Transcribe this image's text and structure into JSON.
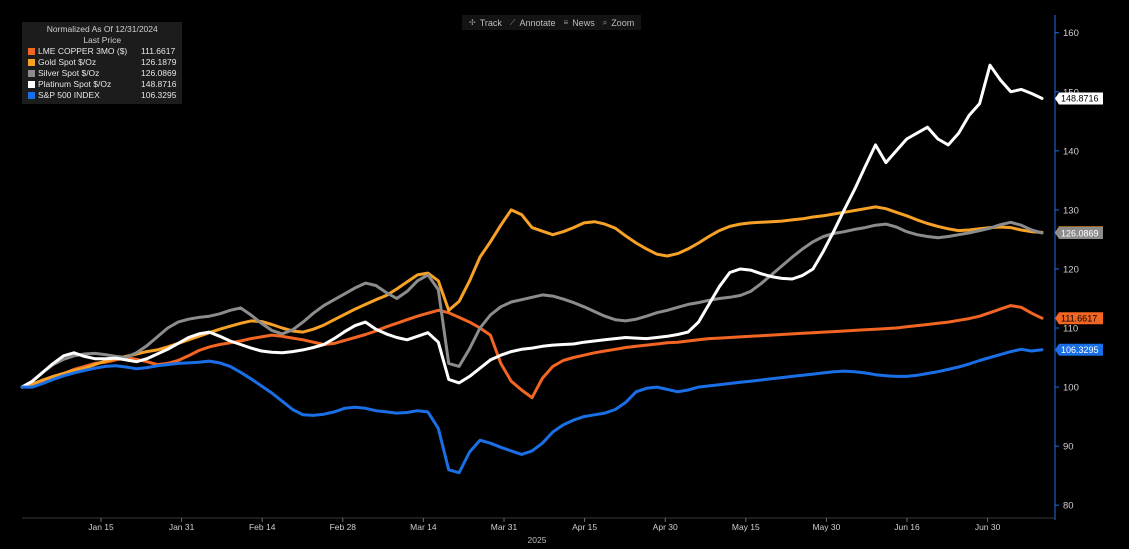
{
  "toolbar": {
    "track_label": "Track",
    "track_icon": "crosshair-icon",
    "annotate_label": "Annotate",
    "annotate_icon": "pencil-icon",
    "news_label": "News",
    "news_icon": "news-icon",
    "zoom_label": "Zoom",
    "zoom_icon": "magnifier-icon"
  },
  "legend": {
    "header_line1": "Normalized As Of 12/31/2024",
    "header_line2": "Last Price"
  },
  "chart_data": {
    "type": "line",
    "xlabel": "2025",
    "x_ticks": [
      "Jan 15",
      "Jan 31",
      "Feb 14",
      "Feb 28",
      "Mar 14",
      "Mar 31",
      "Apr 15",
      "Apr 30",
      "May 15",
      "May 30",
      "Jun 16",
      "Jun 30"
    ],
    "ylim": [
      78,
      163
    ],
    "y_ticks": [
      80,
      90,
      100,
      110,
      120,
      130,
      140,
      150,
      160
    ],
    "grid": false,
    "legend_position": "top-left",
    "series": [
      {
        "name": "LME COPPER 3MO ($)",
        "last": "111.6617",
        "color": "#f26522",
        "values": [
          100,
          100.5,
          101,
          101.8,
          102.3,
          103,
          103.5,
          104,
          104.2,
          104.6,
          105,
          104.7,
          104.3,
          103.8,
          104,
          104.5,
          105.3,
          106.2,
          106.8,
          107.2,
          107.5,
          107.8,
          108.2,
          108.5,
          108.8,
          108.6,
          108.3,
          108,
          107.6,
          107.2,
          107.4,
          107.9,
          108.4,
          108.9,
          109.5,
          110.2,
          110.8,
          111.4,
          112,
          112.5,
          113,
          112.6,
          111.8,
          111,
          110,
          108.8,
          104,
          101,
          99.5,
          98.2,
          101.5,
          103.5,
          104.5,
          105,
          105.4,
          105.8,
          106.1,
          106.4,
          106.7,
          106.9,
          107.1,
          107.3,
          107.5,
          107.6,
          107.8,
          108,
          108.2,
          108.3,
          108.4,
          108.5,
          108.6,
          108.7,
          108.8,
          108.9,
          109,
          109.1,
          109.2,
          109.3,
          109.4,
          109.5,
          109.6,
          109.7,
          109.8,
          109.9,
          110,
          110.2,
          110.4,
          110.6,
          110.8,
          111,
          111.3,
          111.6,
          112,
          112.6,
          113.2,
          113.8,
          113.5,
          112.5,
          111.6617
        ]
      },
      {
        "name": "Gold Spot $/Oz",
        "last": "126.1879",
        "color": "#f7a126",
        "values": [
          100,
          100.5,
          101.2,
          101.8,
          102.3,
          102.8,
          103.2,
          103.8,
          104.4,
          104.8,
          105.2,
          105.6,
          106,
          106.3,
          106.8,
          107.4,
          108,
          108.6,
          109.2,
          109.8,
          110.3,
          110.8,
          111.2,
          111.1,
          110.6,
          110,
          109.5,
          109.3,
          109.8,
          110.5,
          111.4,
          112.3,
          113.2,
          114,
          114.8,
          115.5,
          116.6,
          117.8,
          119,
          119.3,
          118,
          113,
          114.5,
          118,
          122,
          124.6,
          127.4,
          130,
          129.2,
          127,
          126.4,
          125.8,
          126.3,
          127,
          127.8,
          128,
          127.6,
          126.9,
          125.6,
          124.4,
          123.4,
          122.5,
          122.2,
          122.6,
          123.4,
          124.4,
          125.5,
          126.5,
          127.2,
          127.6,
          127.8,
          127.9,
          128,
          128.1,
          128.3,
          128.5,
          128.8,
          129,
          129.3,
          129.6,
          129.9,
          130.2,
          130.5,
          130.2,
          129.6,
          129,
          128.3,
          127.7,
          127.2,
          126.8,
          126.5,
          126.6,
          126.8,
          127,
          127.1,
          127,
          126.6,
          126.3,
          126.1879
        ]
      },
      {
        "name": "Silver Spot $/Oz",
        "last": "126.0869",
        "color": "#8c8c8c",
        "values": [
          100,
          101,
          102.5,
          103.8,
          104.7,
          105.3,
          105.6,
          105.7,
          105.5,
          105.2,
          105,
          105.8,
          107,
          108.5,
          110,
          111,
          111.5,
          111.8,
          112,
          112.4,
          113,
          113.4,
          112.2,
          110.8,
          109.6,
          109,
          109.7,
          111,
          112.5,
          113.8,
          114.8,
          115.8,
          116.8,
          117.6,
          117.2,
          116,
          115,
          116.2,
          118,
          119,
          116.5,
          104,
          103.5,
          106.5,
          110,
          112.2,
          113.6,
          114.4,
          114.8,
          115.2,
          115.6,
          115.4,
          114.9,
          114.3,
          113.6,
          112.8,
          112,
          111.4,
          111.2,
          111.5,
          112,
          112.6,
          113,
          113.5,
          114,
          114.3,
          114.7,
          115,
          115.2,
          115.5,
          116.2,
          117.5,
          119,
          120.5,
          122,
          123.4,
          124.6,
          125.5,
          126,
          126.3,
          126.7,
          127,
          127.4,
          127.6,
          127.1,
          126.3,
          125.8,
          125.5,
          125.3,
          125.5,
          125.8,
          126.1,
          126.5,
          126.9,
          127.5,
          127.9,
          127.4,
          126.6,
          126.0869
        ]
      },
      {
        "name": "Platinum Spot $/Oz",
        "last": "148.8716",
        "color": "#ffffff",
        "values": [
          100,
          101,
          102.5,
          104,
          105.3,
          105.8,
          105.2,
          104.8,
          104.8,
          104.9,
          104.6,
          104.3,
          104.8,
          105.6,
          106.4,
          107.4,
          108.4,
          109,
          109.3,
          108.6,
          107.8,
          107.2,
          106.6,
          106.1,
          105.9,
          105.8,
          106,
          106.3,
          106.7,
          107.2,
          108.2,
          109.4,
          110.4,
          111,
          109.8,
          109,
          108.4,
          108,
          108.6,
          109.2,
          107.6,
          101.3,
          100.7,
          101.8,
          103.2,
          104.6,
          105.4,
          106,
          106.4,
          106.6,
          106.9,
          107.1,
          107.2,
          107.3,
          107.6,
          107.8,
          108,
          108.2,
          108.4,
          108.3,
          108.2,
          108.4,
          108.6,
          108.9,
          109.3,
          111,
          114,
          117,
          119.4,
          120,
          119.8,
          119.2,
          118.7,
          118.4,
          118.3,
          118.9,
          120,
          123,
          126.4,
          130,
          133.5,
          137.3,
          141,
          138,
          140,
          142,
          143,
          144,
          142,
          141,
          143,
          146,
          148,
          154.5,
          152,
          150,
          150.4,
          149.7,
          148.8716
        ]
      },
      {
        "name": "S&P 500 INDEX",
        "last": "106.3295",
        "color": "#1a6fe6",
        "values": [
          100,
          100,
          100.6,
          101.3,
          101.9,
          102.4,
          102.8,
          103.2,
          103.5,
          103.6,
          103.4,
          103.1,
          103.3,
          103.6,
          103.8,
          104,
          104.1,
          104.2,
          104.4,
          104.1,
          103.5,
          102.5,
          101.4,
          100.2,
          99,
          97.6,
          96.2,
          95.3,
          95.2,
          95.4,
          95.8,
          96.4,
          96.6,
          96.4,
          96,
          95.8,
          95.6,
          95.7,
          96,
          95.8,
          93,
          86,
          85.5,
          89,
          91,
          90.5,
          89.8,
          89.2,
          88.6,
          89.2,
          90.5,
          92.4,
          93.6,
          94.4,
          95,
          95.3,
          95.6,
          96.2,
          97.4,
          99.2,
          99.8,
          100,
          99.6,
          99.2,
          99.5,
          100,
          100.2,
          100.4,
          100.6,
          100.8,
          101,
          101.2,
          101.4,
          101.6,
          101.8,
          102,
          102.2,
          102.4,
          102.6,
          102.7,
          102.6,
          102.4,
          102.1,
          101.9,
          101.8,
          101.8,
          102,
          102.3,
          102.6,
          103,
          103.4,
          103.9,
          104.5,
          105,
          105.5,
          106,
          106.4,
          106.1,
          106.3295
        ]
      }
    ]
  }
}
